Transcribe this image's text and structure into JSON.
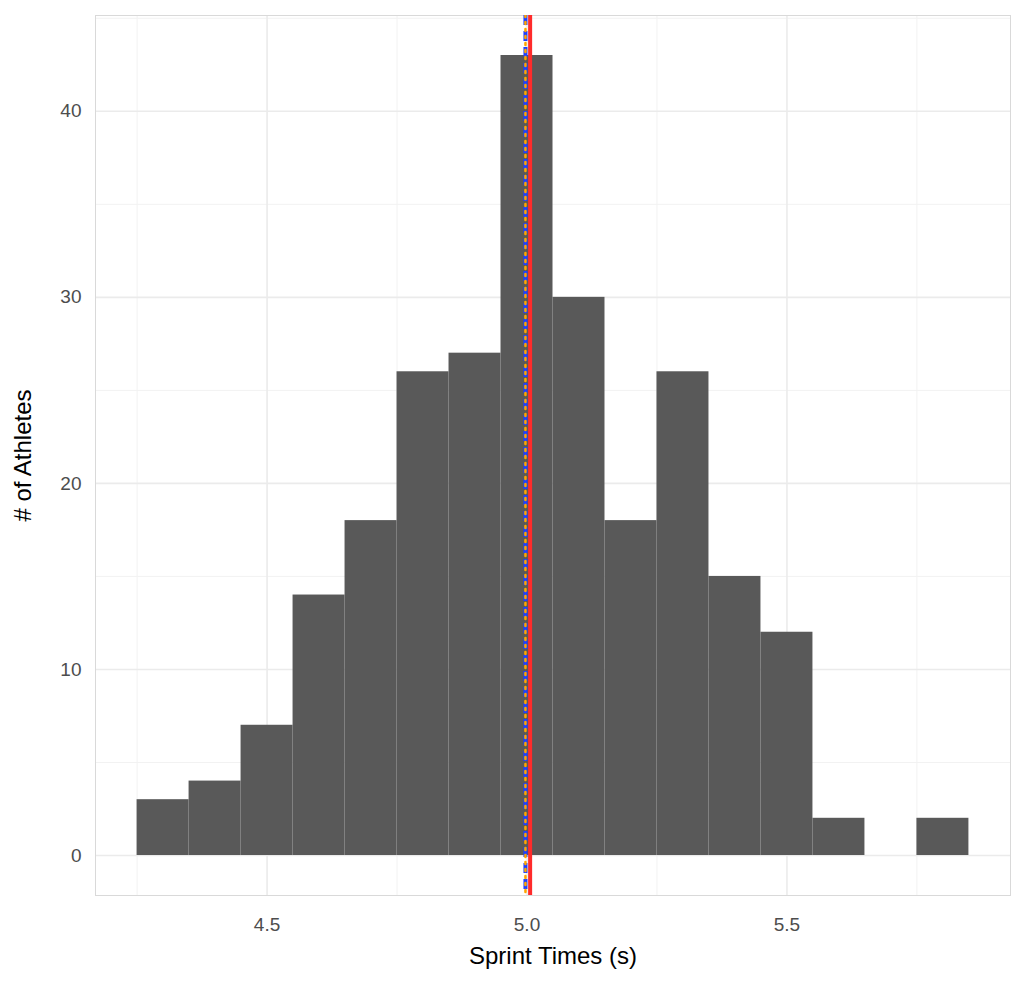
{
  "chart_data": {
    "type": "histogram",
    "x_label": "Sprint Times (s)",
    "y_label": "# of Athletes",
    "bins": [
      4.25,
      4.35,
      4.45,
      4.55,
      4.65,
      4.75,
      4.85,
      4.95,
      5.05,
      5.15,
      5.25,
      5.35,
      5.45,
      5.55,
      5.65,
      5.75,
      5.85
    ],
    "values": [
      3,
      4,
      7,
      14,
      18,
      26,
      27,
      43,
      30,
      18,
      26,
      15,
      12,
      2,
      0,
      2
    ],
    "color": "#595959",
    "reference_lines": [
      {
        "value": 5.006,
        "color": "#ff2b2b",
        "line_style": "solid"
      },
      {
        "value": 4.997,
        "color": "#1f3fff",
        "line_style": "dashed"
      },
      {
        "value": 4.997,
        "color": "#ffa500",
        "line_style": "dotted"
      }
    ],
    "xlim": [
      4.17,
      5.93
    ],
    "ylim": [
      -2.15,
      45.15
    ],
    "xticks": [
      4.5,
      {
        "value": 5,
        "label": "5.0"
      },
      5.5
    ],
    "yticks": [
      0,
      10,
      20,
      30,
      40
    ],
    "grid": true
  }
}
